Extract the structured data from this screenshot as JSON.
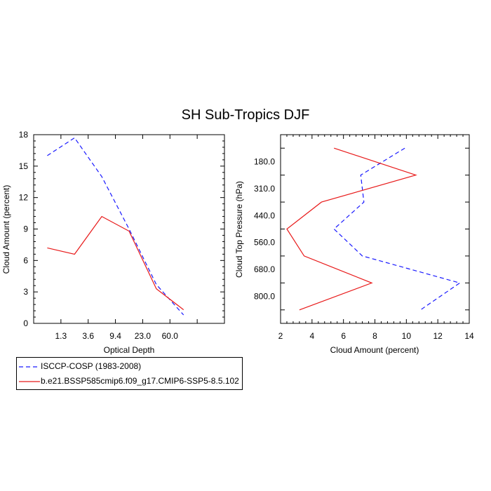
{
  "figure": {
    "title": "SH Sub-Tropics DJF"
  },
  "colors": {
    "isccp": "#1a1aff",
    "model": "#e81a1a"
  },
  "chart_data": [
    {
      "type": "line",
      "xlabel": "Optical Depth",
      "ylabel": "Cloud Amount (percent)",
      "x_tick_labels": [
        "1.3",
        "3.6",
        "9.4",
        "23.0",
        "60.0"
      ],
      "ylim": [
        0,
        18
      ],
      "y_ticks": [
        0,
        3,
        6,
        9,
        12,
        15,
        18
      ],
      "x_bins": 7,
      "series": [
        {
          "name": "ISCCP-COSP (1983-2008)",
          "style": "dashed",
          "values": [
            16.0,
            17.7,
            14.0,
            9.0,
            3.7,
            0.8
          ]
        },
        {
          "name": "b.e21.BSSP585cmip6.f09_g17.CMIP6-SSP5-8.5.102",
          "style": "solid",
          "values": [
            7.2,
            6.6,
            10.2,
            8.8,
            3.3,
            1.3
          ]
        }
      ],
      "x_points": [
        0.5,
        1.5,
        2.5,
        3.5,
        4.5,
        5.5
      ]
    },
    {
      "type": "line",
      "xlabel": "Cloud Amount (percent)",
      "ylabel": "Cloud Top Pressure (hPa)",
      "xlim": [
        2,
        14
      ],
      "x_ticks": [
        2,
        4,
        6,
        8,
        10,
        12,
        14
      ],
      "y_tick_labels": [
        "180.0",
        "310.0",
        "440.0",
        "560.0",
        "680.0",
        "800.0"
      ],
      "y_bins": 7,
      "series": [
        {
          "name": "ISCCP-COSP (1983-2008)",
          "style": "dashed",
          "values": [
            9.9,
            7.1,
            7.3,
            5.4,
            7.2,
            13.4,
            10.9
          ]
        },
        {
          "name": "b.e21.BSSP585cmip6.f09_g17.CMIP6-SSP5-8.5.102",
          "style": "solid",
          "values": [
            5.4,
            10.6,
            4.6,
            2.4,
            3.5,
            7.8,
            3.2
          ]
        }
      ],
      "y_points": [
        0,
        1,
        2,
        3,
        4,
        5,
        6
      ]
    }
  ],
  "legend": {
    "entries": [
      {
        "label": "ISCCP-COSP (1983-2008)",
        "style": "dashed"
      },
      {
        "label": "b.e21.BSSP585cmip6.f09_g17.CMIP6-SSP5-8.5.102",
        "style": "solid"
      }
    ]
  }
}
